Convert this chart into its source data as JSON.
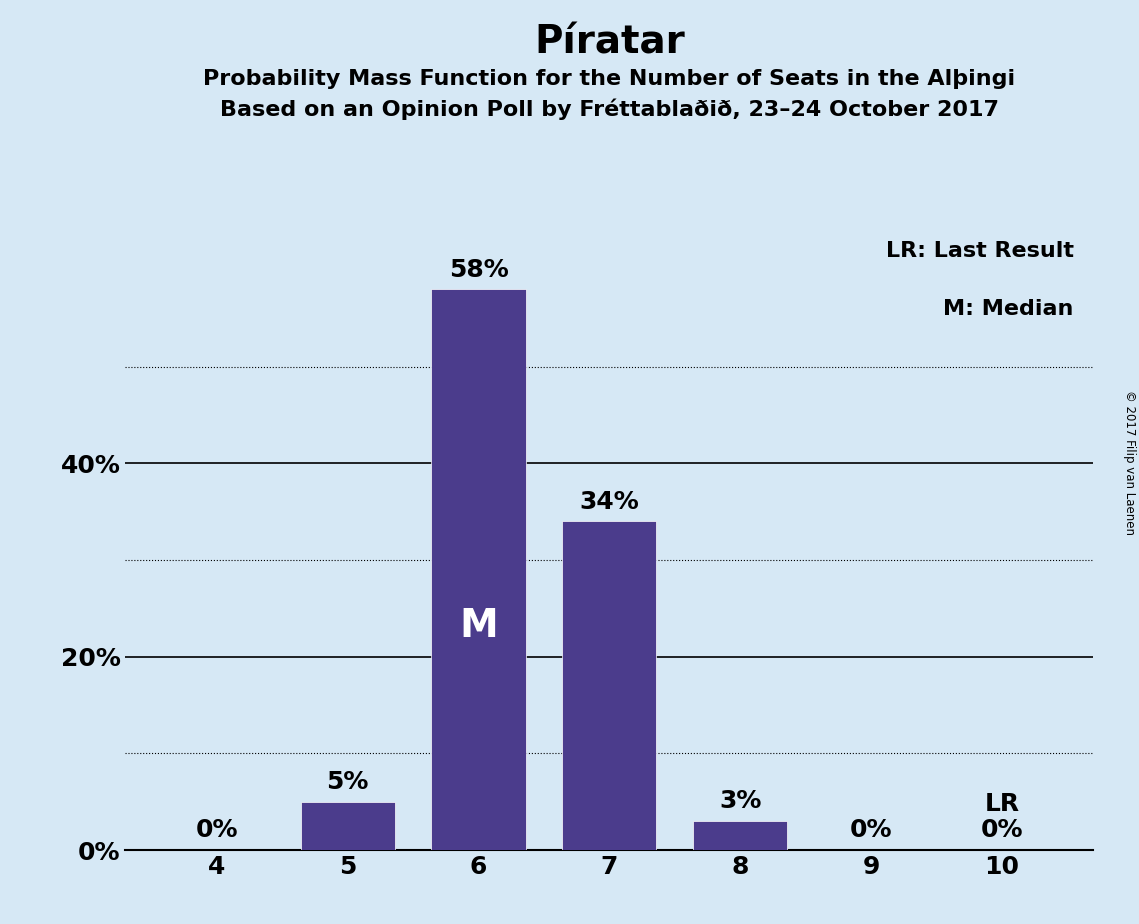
{
  "title": "Píratar",
  "subtitle1": "Probability Mass Function for the Number of Seats in the Alþingi",
  "subtitle2": "Based on an Opinion Poll by Fréttablaðið, 23–24 October 2017",
  "categories": [
    4,
    5,
    6,
    7,
    8,
    9,
    10
  ],
  "values": [
    0,
    5,
    58,
    34,
    3,
    0,
    0
  ],
  "bar_color": "#4B3C8C",
  "background_color": "#D6E8F5",
  "solid_gridlines": [
    20,
    40
  ],
  "dotted_gridlines": [
    10,
    30,
    50
  ],
  "ylim": [
    0,
    65
  ],
  "median_bar": 6,
  "lr_bar": 10,
  "legend_text1": "LR: Last Result",
  "legend_text2": "M: Median",
  "copyright_text": "© 2017 Filip van Laenen",
  "title_fontsize": 28,
  "subtitle_fontsize": 16,
  "bar_label_fontsize": 18,
  "axis_tick_fontsize": 16,
  "legend_fontsize": 16,
  "median_label": "M",
  "lr_label": "LR",
  "bar_width": 0.72,
  "xlim": [
    3.3,
    10.7
  ]
}
